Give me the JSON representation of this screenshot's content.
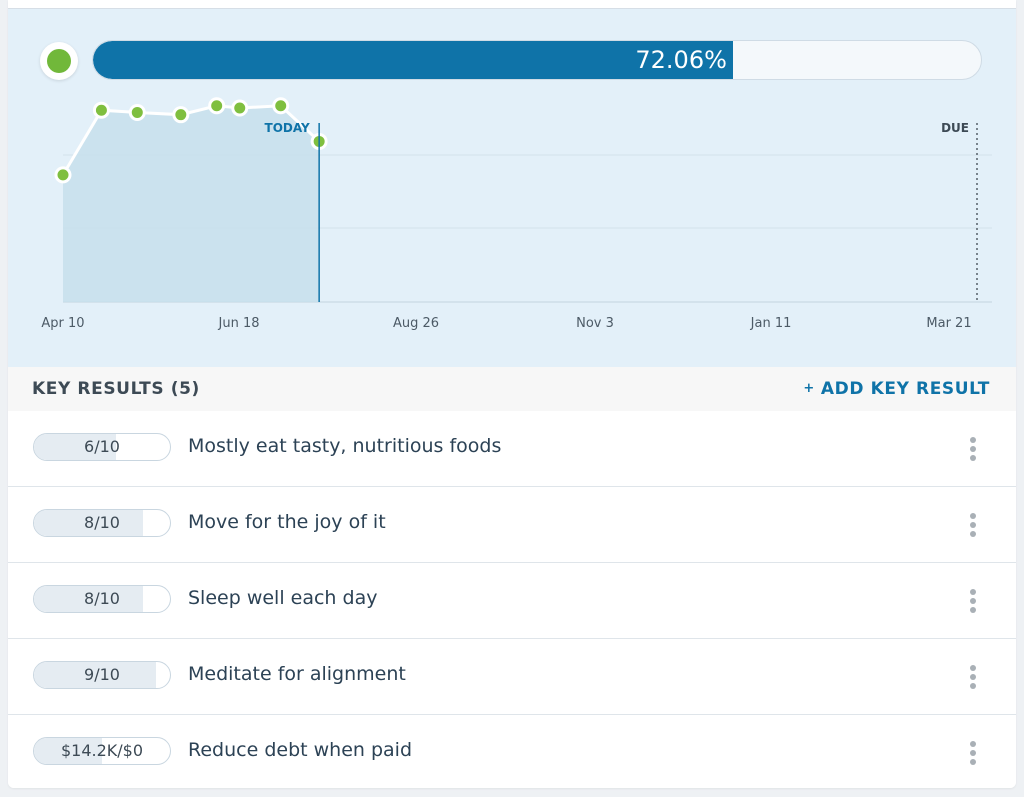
{
  "objective": {
    "progress_percent": 72.06,
    "progress_text": "72.06%",
    "status_color": "#71b83a"
  },
  "chart_data": {
    "type": "area",
    "x_ticks": [
      "Apr 10",
      "Jun 18",
      "Aug 26",
      "Nov 3",
      "Jan 11",
      "Mar 21"
    ],
    "markers": {
      "today": "TODAY",
      "due": "DUE"
    },
    "ylim": [
      0,
      100
    ],
    "series": [
      {
        "points": [
          {
            "date": "Apr 10",
            "value": 57
          },
          {
            "date": "Apr 25",
            "value": 86
          },
          {
            "date": "May 9",
            "value": 85
          },
          {
            "date": "May 26",
            "value": 84
          },
          {
            "date": "Jun 9",
            "value": 88
          },
          {
            "date": "Jun 18",
            "value": 87
          },
          {
            "date": "Jul 4",
            "value": 88
          },
          {
            "date": "Jul 19",
            "value": 72
          }
        ]
      }
    ]
  },
  "key_results": {
    "title": "KEY RESULTS (5)",
    "add_label": "ADD KEY RESULT",
    "add_icon": "+",
    "items": [
      {
        "value": "6/10",
        "progress": 0.6,
        "label": "Mostly eat tasty, nutritious foods"
      },
      {
        "value": "8/10",
        "progress": 0.8,
        "label": "Move for the joy of it"
      },
      {
        "value": "8/10",
        "progress": 0.8,
        "label": "Sleep well each day"
      },
      {
        "value": "9/10",
        "progress": 0.9,
        "label": "Meditate for alignment"
      },
      {
        "value": "$14.2K/$0",
        "progress": 0.5,
        "label": "Reduce debt when paid"
      }
    ]
  }
}
